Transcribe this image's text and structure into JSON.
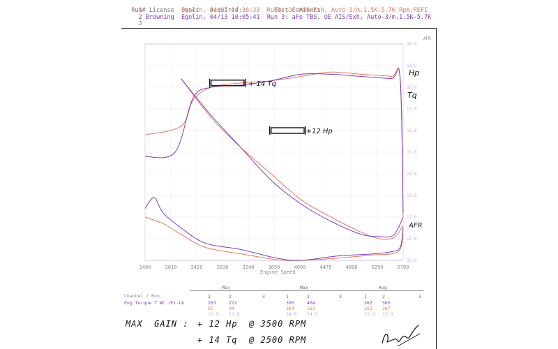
{
  "header": {
    "columns": [
      "Run#",
      "License",
      "Owner",
      "Acquired",
      "Test Comments"
    ],
    "runs": [
      {
        "num": "1",
        "license": "",
        "owner": "Egelin",
        "acquired": "04/07 14:36:33",
        "comment": "Run3: OE AIS/Exh, Auto-3/m,1.5K-5.7K Rpm,REFI"
      },
      {
        "num": "2",
        "license": "Browning",
        "owner": "Egelin",
        "acquired": "04/13 10:05:41",
        "comment": "Run 3: aFe TBS, OE AIS/Exh, Auto-3/m,1.5K-5.7K"
      },
      {
        "num": "3",
        "license": "",
        "owner": "",
        "acquired": "",
        "comment": ""
      }
    ]
  },
  "colors": {
    "run1": "#e07a5f",
    "run2": "#7a3fb5",
    "box": "#111111"
  },
  "chart_data": {
    "type": "line",
    "xlabel": "Engine Speed",
    "x_ticks": [
      "1400",
      "2010",
      "2420",
      "2830",
      "3240",
      "3650",
      "4060",
      "4470",
      "4880",
      "5290",
      "5700"
    ],
    "right_ticks": [
      "20.0",
      "19.0",
      "18.0",
      "17.0",
      "16.0",
      "15.0",
      "14.0",
      "13.0",
      "12.0",
      "11.0",
      "10.0"
    ],
    "right_label": "AFR",
    "xlim": [
      1400,
      5700
    ],
    "series": [
      {
        "key": "torque1",
        "values": [
          [
            1400,
            20
          ],
          [
            1700,
            17
          ],
          [
            2000,
            12
          ],
          [
            2400,
            6
          ],
          [
            3000,
            3
          ],
          [
            3600,
            0.3
          ],
          [
            4000,
            0
          ],
          [
            4600,
            1
          ],
          [
            5200,
            2.5
          ],
          [
            5500,
            3
          ],
          [
            5650,
            5
          ],
          [
            5700,
            12
          ]
        ]
      },
      {
        "key": "torque2",
        "values": [
          [
            1400,
            24
          ],
          [
            1550,
            29
          ],
          [
            1700,
            22
          ],
          [
            2000,
            15
          ],
          [
            2400,
            8
          ],
          [
            3000,
            5
          ],
          [
            3600,
            1
          ],
          [
            4000,
            0
          ],
          [
            4600,
            2
          ],
          [
            5200,
            3
          ],
          [
            5500,
            4
          ],
          [
            5650,
            6
          ],
          [
            5700,
            15
          ]
        ]
      },
      {
        "key": "hp1",
        "values": [
          [
            2000,
            84
          ],
          [
            2500,
            66
          ],
          [
            3000,
            52
          ],
          [
            3500,
            40
          ],
          [
            4000,
            28
          ],
          [
            4500,
            20
          ],
          [
            5000,
            13
          ],
          [
            5300,
            10
          ],
          [
            5500,
            10
          ],
          [
            5600,
            12
          ],
          [
            5700,
            16
          ]
        ]
      },
      {
        "key": "hp2",
        "values": [
          [
            2000,
            84
          ],
          [
            2500,
            67
          ],
          [
            3000,
            52
          ],
          [
            3500,
            37
          ],
          [
            4000,
            26
          ],
          [
            4500,
            18
          ],
          [
            5000,
            12
          ],
          [
            5300,
            11
          ],
          [
            5500,
            11
          ],
          [
            5600,
            14
          ],
          [
            5700,
            20
          ]
        ]
      },
      {
        "key": "afr1",
        "values": [
          [
            1400,
            58
          ],
          [
            2000,
            62
          ],
          [
            2200,
            74
          ],
          [
            2500,
            80
          ],
          [
            3000,
            82
          ],
          [
            3500,
            83
          ],
          [
            4000,
            85
          ],
          [
            4500,
            87
          ],
          [
            5000,
            86
          ],
          [
            5500,
            85
          ],
          [
            5650,
            84
          ],
          [
            5700,
            20
          ]
        ]
      },
      {
        "key": "afr2",
        "values": [
          [
            1400,
            48
          ],
          [
            1900,
            50
          ],
          [
            2200,
            75
          ],
          [
            2500,
            80
          ],
          [
            3000,
            81
          ],
          [
            3500,
            83
          ],
          [
            4000,
            86
          ],
          [
            4500,
            86
          ],
          [
            5000,
            85
          ],
          [
            5500,
            84
          ],
          [
            5650,
            84
          ],
          [
            5700,
            22
          ]
        ]
      }
    ],
    "annotations": [
      {
        "label": "+ 14 Tq",
        "x": 2500
      },
      {
        "label": "+12 Hp",
        "x": 3500
      }
    ],
    "curve_labels": [
      "Hp",
      "Tq",
      "AFR"
    ]
  },
  "table": {
    "channel_label": "Channel / Run",
    "row_label": "Eng Torque T WC (Ft-Lb",
    "groups": [
      "Min",
      "Max",
      "Avg"
    ],
    "runs": [
      "1",
      "2",
      "3"
    ],
    "rows": [
      [
        "263",
        "272",
        "",
        "395",
        "404",
        "",
        "362",
        "365",
        ""
      ],
      [
        "85",
        "94",
        "",
        "364",
        "163",
        "",
        "262",
        "267",
        ""
      ],
      [
        "11.9",
        "11.8",
        "",
        "14.6",
        "14.5",
        "",
        "12.3",
        "12.3",
        ""
      ]
    ]
  },
  "notes": {
    "line1_label": "MAX  GAIN :",
    "line1_value": "+ 12 Hp  @ 3500 RPM",
    "line2_value": "+ 14 Tq  @ 2500 RPM"
  }
}
